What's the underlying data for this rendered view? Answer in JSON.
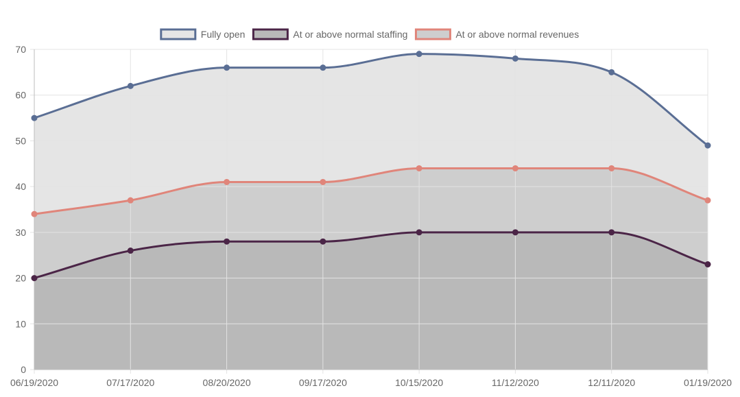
{
  "chart_data": {
    "type": "area",
    "categories": [
      "06/19/2020",
      "07/17/2020",
      "08/20/2020",
      "09/17/2020",
      "10/15/2020",
      "11/12/2020",
      "12/11/2020",
      "01/19/2020"
    ],
    "ylim": [
      0,
      70
    ],
    "yticks": [
      0,
      10,
      20,
      30,
      40,
      50,
      60,
      70
    ],
    "grid": true,
    "legend_position": "top",
    "series": [
      {
        "name": "Fully open",
        "values": [
          55,
          62,
          66,
          66,
          69,
          68,
          65,
          49
        ],
        "color": "#5a6e94",
        "fill": "#e5e5e5"
      },
      {
        "name": "At or above normal revenues",
        "values": [
          34,
          37,
          41,
          41,
          44,
          44,
          44,
          37
        ],
        "color": "#e0857a",
        "fill": "#cecece"
      },
      {
        "name": "At or above normal staffing",
        "values": [
          20,
          26,
          28,
          28,
          30,
          30,
          30,
          23
        ],
        "color": "#4b2547",
        "fill": "#b9b9b9"
      }
    ],
    "legend_order": [
      "Fully open",
      "At or above normal staffing",
      "At or above normal revenues"
    ]
  }
}
